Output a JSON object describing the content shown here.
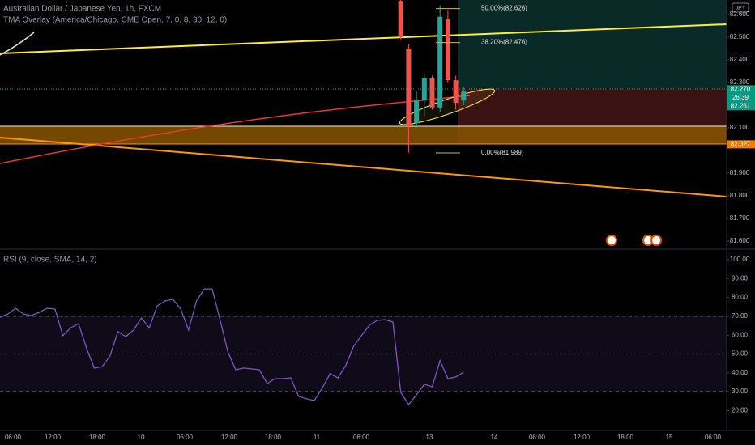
{
  "header": {
    "symbol": "Australian Dollar / Japanese Yen, 1h, FXCM",
    "indicator": "TMA Overlay (America/Chicago, CME Open, 7, 0, 8, 30, 12, 0)",
    "currency": "JPY"
  },
  "chart_data": [
    {
      "type": "candlestick",
      "open": [
        82.66,
        82.45,
        82.12,
        82.22,
        82.32,
        82.19,
        82.58,
        82.31,
        82.22
      ],
      "high": [
        82.7,
        82.47,
        82.26,
        82.34,
        82.33,
        82.64,
        82.62,
        82.33,
        82.28
      ],
      "low": [
        82.49,
        81.99,
        82.1,
        82.15,
        82.18,
        82.17,
        82.3,
        82.18,
        82.2
      ],
      "close": [
        82.5,
        82.11,
        82.22,
        82.32,
        82.19,
        82.59,
        82.31,
        82.21,
        82.26
      ],
      "up_color": "#26a69a",
      "down_color": "#ef5350",
      "ylim": [
        81.564,
        82.664
      ],
      "yticks": [
        {
          "value": 82.6,
          "label": "82.600"
        },
        {
          "value": 82.5,
          "label": "82.500"
        },
        {
          "value": 82.4,
          "label": "82.400"
        },
        {
          "value": 82.3,
          "label": "82.300"
        },
        {
          "value": 82.1,
          "label": "82.100"
        },
        {
          "value": 81.9,
          "label": "81.900"
        },
        {
          "value": 81.8,
          "label": "81.800"
        },
        {
          "value": 81.7,
          "label": "81.700"
        },
        {
          "value": 81.6,
          "label": "81.600"
        }
      ],
      "fib_levels": [
        {
          "value": 82.626,
          "label": "50.00%(82.626)"
        },
        {
          "value": 82.476,
          "label": "38.20%(82.476)"
        },
        {
          "value": 81.989,
          "label": "0.00%(81.989)"
        }
      ],
      "price_tags": [
        {
          "value": 82.27,
          "label": "82.270",
          "color": "#089981"
        },
        {
          "value": 82.027,
          "label": "82.027",
          "color": "#f57c00"
        }
      ],
      "countdown": "26:39",
      "last_close": {
        "value": 82.261,
        "label": "82.261"
      }
    },
    {
      "type": "line",
      "title": "RSI (9, close, SMA, 14, 2)",
      "color": "#7e57c2",
      "values": [
        69.5,
        71.2,
        74.2,
        71.2,
        70.4,
        72.1,
        74.2,
        73.8,
        59.7,
        63.9,
        66.1,
        53.2,
        42.5,
        43.3,
        48.9,
        61.8,
        59.2,
        62.7,
        69.1,
        63.9,
        75.5,
        78.1,
        79.0,
        73.8,
        62.7,
        78.1,
        84.5,
        84.5,
        68.2,
        51.1,
        41.6,
        42.5,
        42.1,
        41.6,
        34.3,
        36.9,
        36.9,
        37.3,
        27.5,
        26.2,
        25.3,
        31.8,
        39.5,
        37.3,
        43.8,
        54.1,
        59.7,
        65.2,
        67.8,
        68.2,
        67.0,
        29.6,
        23.2,
        28.3,
        33.9,
        32.6,
        46.4,
        36.9,
        37.8,
        40.3
      ],
      "ylim": [
        9.4,
        105.6
      ],
      "yticks": [
        {
          "value": 100,
          "label": "100.00"
        },
        {
          "value": 90,
          "label": "90.00"
        },
        {
          "value": 80,
          "label": "80.00"
        },
        {
          "value": 70,
          "label": "70.00"
        },
        {
          "value": 60,
          "label": "60.00"
        },
        {
          "value": 50,
          "label": "50.00"
        },
        {
          "value": 40,
          "label": "40.00"
        },
        {
          "value": 30,
          "label": "30.00"
        },
        {
          "value": 20,
          "label": "20.00"
        }
      ],
      "bands": [
        70,
        50,
        30
      ]
    }
  ],
  "time_axis": [
    "06:00",
    "12:00",
    "18:00",
    "10",
    "06:00",
    "12:00",
    "18:00",
    "11",
    "06:00",
    "13",
    "14",
    "06:00",
    "12:00",
    "18:00",
    "15",
    "06:00"
  ]
}
